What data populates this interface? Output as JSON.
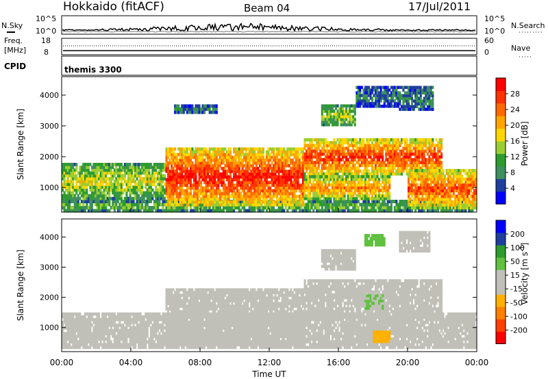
{
  "header": {
    "station": "Hokkaido (fitACF)",
    "beam": "Beam 04",
    "date": "17/Jul/2011"
  },
  "top_panels": {
    "nsky_label": "N.Sky",
    "nsearch_label": "N.Search",
    "nsky_ticks": [
      "10^5",
      "10^0"
    ],
    "nsearch_ticks": [
      "10^5",
      "10^0"
    ],
    "freq_label": "Freq.",
    "freq_unit": "[MHz]",
    "freq_ticks": [
      "18",
      "8"
    ],
    "nave_label": "Nave",
    "nave_ticks": [
      "60",
      "0"
    ],
    "cpid_label": "CPID",
    "cpid_value": "themis 3300"
  },
  "colors": {
    "power_scale": [
      "#0000ff",
      "#1f3f9e",
      "#3f8f5f",
      "#2e9b2e",
      "#9acd32",
      "#ffd700",
      "#ffa500",
      "#ff6a00",
      "#ff3300",
      "#ff0000"
    ],
    "velocity_scale": [
      "#ff0000",
      "#ff4000",
      "#ff8000",
      "#ffb000",
      "#c0c0b8",
      "#c0c0b8",
      "#60c040",
      "#2e9b2e",
      "#1f3f9e",
      "#0000ff"
    ]
  },
  "chart_data": [
    {
      "type": "heatmap",
      "panel": "power",
      "ylabel": "Slant Range [km]",
      "yticks": [
        "1000",
        "2000",
        "3000",
        "4000"
      ],
      "ylim": [
        200,
        4600
      ],
      "xlim": [
        "00:00",
        "24:00"
      ],
      "colorbar_label": "Power [dB]",
      "colorbar_ticks": [
        "4",
        "8",
        "12",
        "16",
        "20",
        "24",
        "28"
      ],
      "colorbar_range": [
        0,
        32
      ],
      "bands": [
        {
          "t0": 0,
          "t1": 24,
          "r0": 200,
          "r1": 600,
          "level": 0.45
        },
        {
          "t0": 0,
          "t1": 6,
          "r0": 600,
          "r1": 1800,
          "level": 0.55
        },
        {
          "t0": 6,
          "t1": 14,
          "r0": 400,
          "r1": 2300,
          "level": 0.95
        },
        {
          "t0": 14,
          "t1": 22,
          "r0": 1400,
          "r1": 2600,
          "level": 0.9
        },
        {
          "t0": 14,
          "t1": 19,
          "r0": 600,
          "r1": 1400,
          "level": 0.75
        },
        {
          "t0": 20,
          "t1": 24,
          "r0": 300,
          "r1": 1600,
          "level": 0.85
        },
        {
          "t0": 6.5,
          "t1": 9,
          "r0": 3400,
          "r1": 3700,
          "level": 0.3
        },
        {
          "t0": 15,
          "t1": 17,
          "r0": 3000,
          "r1": 3700,
          "level": 0.5
        },
        {
          "t0": 17,
          "t1": 19.5,
          "r0": 3600,
          "r1": 4300,
          "level": 0.25
        },
        {
          "t0": 19.5,
          "t1": 21.5,
          "r0": 3500,
          "r1": 4300,
          "level": 0.3
        }
      ]
    },
    {
      "type": "heatmap",
      "panel": "velocity",
      "ylabel": "Slant Range [km]",
      "yticks": [
        "1000",
        "2000",
        "3000",
        "4000"
      ],
      "ylim": [
        200,
        4600
      ],
      "xlim": [
        "00:00",
        "24:00"
      ],
      "xticks": [
        "00:00",
        "04:00",
        "08:00",
        "12:00",
        "16:00",
        "20:00",
        "00:00"
      ],
      "xlabel": "Time UT",
      "colorbar_label": "Velocity [m s^-1]",
      "colorbar_ticks": [
        "-200",
        "-100",
        "-50",
        "-15",
        "15",
        "50",
        "100",
        "200"
      ],
      "colorbar_range": [
        -250,
        250
      ],
      "bands": [
        {
          "t0": 0,
          "t1": 24,
          "r0": 300,
          "r1": 1500,
          "vel": 0
        },
        {
          "t0": 6,
          "t1": 14,
          "r0": 400,
          "r1": 2300,
          "vel": 0
        },
        {
          "t0": 14,
          "t1": 22,
          "r0": 1300,
          "r1": 2600,
          "vel": 5
        },
        {
          "t0": 17.5,
          "t1": 18.6,
          "r0": 1600,
          "r1": 2100,
          "vel": 50
        },
        {
          "t0": 17.5,
          "t1": 18.7,
          "r0": 3700,
          "r1": 4100,
          "vel": 60
        },
        {
          "t0": 18,
          "t1": 19,
          "r0": 500,
          "r1": 900,
          "vel": -60
        },
        {
          "t0": 16.2,
          "t1": 17,
          "r0": 900,
          "r1": 1200,
          "vel": -40
        },
        {
          "t0": 15,
          "t1": 17,
          "r0": 2900,
          "r1": 3600,
          "vel": 0
        },
        {
          "t0": 19.5,
          "t1": 21.3,
          "r0": 3500,
          "r1": 4200,
          "vel": 0
        }
      ]
    }
  ]
}
